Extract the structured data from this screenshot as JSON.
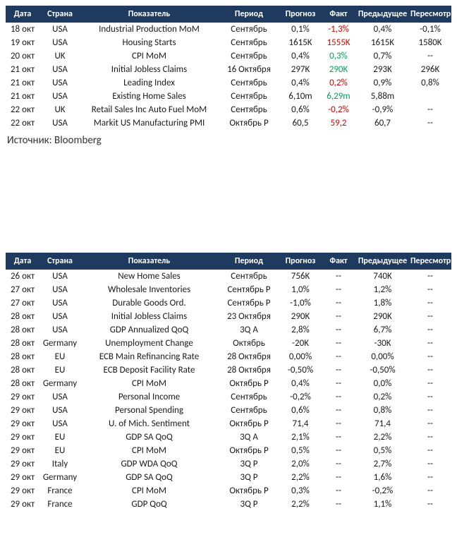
{
  "columns": {
    "date": "Дата",
    "country": "Страна",
    "indicator": "Показатель",
    "period": "Период",
    "forecast": "Прогноз",
    "actual": "Факт",
    "previous": "Предыдущее",
    "revision": "Пересмотр"
  },
  "source_label": "Источник: Bloomberg",
  "colors": {
    "header_bg": "#1f3a5f",
    "header_fg": "#ffffff",
    "text": "#1a1a1a",
    "neg": "#d40000",
    "pos": "#00a651"
  },
  "table1": [
    {
      "date": "18 окт",
      "country": "USA",
      "indicator": "Industrial Production MoM",
      "period": "Сентябрь",
      "forecast": "0,1%",
      "actual": "-1,3%",
      "actual_color": "neg",
      "previous": "0,4%",
      "revision": "-0,1%"
    },
    {
      "date": "19 окт",
      "country": "USA",
      "indicator": "Housing Starts",
      "period": "Сентябрь",
      "forecast": "1615K",
      "actual": "1555K",
      "actual_color": "neg",
      "previous": "1615K",
      "revision": "1580K"
    },
    {
      "date": "20 окт",
      "country": "UK",
      "indicator": "CPI MoM",
      "period": "Сентябрь",
      "forecast": "0,4%",
      "actual": "0,3%",
      "actual_color": "pos",
      "previous": "0,7%",
      "revision": "--"
    },
    {
      "date": "21 окт",
      "country": "USA",
      "indicator": "Initial Jobless Claims",
      "period": "16 Октября",
      "forecast": "297K",
      "actual": "290K",
      "actual_color": "pos",
      "previous": "293K",
      "revision": "296K"
    },
    {
      "date": "21 окт",
      "country": "USA",
      "indicator": "Leading Index",
      "period": "Сентябрь",
      "forecast": "0,4%",
      "actual": "0,2%",
      "actual_color": "neg",
      "previous": "0,9%",
      "revision": "0,8%"
    },
    {
      "date": "21 окт",
      "country": "USA",
      "indicator": "Existing Home Sales",
      "period": "Сентябрь",
      "forecast": "6,10m",
      "actual": "6,29m",
      "actual_color": "pos",
      "previous": "5,88m",
      "revision": ""
    },
    {
      "date": "22 окт",
      "country": "UK",
      "indicator": "Retail Sales Inc Auto Fuel MoM",
      "period": "Сентябрь",
      "forecast": "0,6%",
      "actual": "-0,2%",
      "actual_color": "neg",
      "previous": "-0,9%",
      "revision": "--"
    },
    {
      "date": "22 окт",
      "country": "USA",
      "indicator": "Markit US Manufacturing PMI",
      "period": "Октябрь P",
      "forecast": "60,5",
      "actual": "59,2",
      "actual_color": "neg",
      "previous": "60,7",
      "revision": "--"
    }
  ],
  "table2": [
    {
      "date": "26 окт",
      "country": "USA",
      "indicator": "New Home Sales",
      "period": "Сентябрь",
      "forecast": "756K",
      "actual": "--",
      "previous": "740K",
      "revision": "--"
    },
    {
      "date": "27 окт",
      "country": "USA",
      "indicator": "Wholesale Inventories",
      "period": "Сентябрь P",
      "forecast": "1,0%",
      "actual": "--",
      "previous": "1,2%",
      "revision": "--"
    },
    {
      "date": "27 окт",
      "country": "USA",
      "indicator": "Durable Goods Ord.",
      "period": "Сентябрь P",
      "forecast": "-1,0%",
      "actual": "--",
      "previous": "1,8%",
      "revision": "--"
    },
    {
      "date": "28 окт",
      "country": "USA",
      "indicator": "Initial Jobless Claims",
      "period": "23 Октября",
      "forecast": "290K",
      "actual": "--",
      "previous": "290K",
      "revision": "--"
    },
    {
      "date": "28 окт",
      "country": "USA",
      "indicator": "GDP Annualized QoQ",
      "period": "3Q A",
      "forecast": "2,8%",
      "actual": "--",
      "previous": "6,7%",
      "revision": "--"
    },
    {
      "date": "28 окт",
      "country": "Germany",
      "indicator": "Unemployment Change",
      "period": "Октябрь",
      "forecast": "-20K",
      "actual": "--",
      "previous": "-30K",
      "revision": "--"
    },
    {
      "date": "28 окт",
      "country": "EU",
      "indicator": "ECB Main Refinancing Rate",
      "period": "28 Октября",
      "forecast": "0,00%",
      "actual": "--",
      "previous": "0,00%",
      "revision": "--"
    },
    {
      "date": "28 окт",
      "country": "EU",
      "indicator": "ECB Deposit Facility Rate",
      "period": "28 Октября",
      "forecast": "-0,50%",
      "actual": "--",
      "previous": "-0,50%",
      "revision": "--"
    },
    {
      "date": "28 окт",
      "country": "Germany",
      "indicator": "CPI MoM",
      "period": "Октябрь P",
      "forecast": "0,4%",
      "actual": "--",
      "previous": "0,0%",
      "revision": "--"
    },
    {
      "date": "29 окт",
      "country": "USA",
      "indicator": "Personal Income",
      "period": "Сентябрь",
      "forecast": "-0,2%",
      "actual": "--",
      "previous": "0,2%",
      "revision": "--"
    },
    {
      "date": "29 окт",
      "country": "USA",
      "indicator": "Personal Spending",
      "period": "Сентябрь",
      "forecast": "0,6%",
      "actual": "--",
      "previous": "0,8%",
      "revision": "--"
    },
    {
      "date": "29 окт",
      "country": "USA",
      "indicator": "U. of Mich. Sentiment",
      "period": "Октябрь P",
      "forecast": "71,4",
      "actual": "--",
      "previous": "71,4",
      "revision": "--"
    },
    {
      "date": "29 окт",
      "country": "EU",
      "indicator": "GDP SA QoQ",
      "period": "3Q A",
      "forecast": "2,1%",
      "actual": "--",
      "previous": "2,2%",
      "revision": "--"
    },
    {
      "date": "29 окт",
      "country": "EU",
      "indicator": "CPI MoM",
      "period": "Октябрь P",
      "forecast": "0,5%",
      "actual": "--",
      "previous": "0,5%",
      "revision": "--"
    },
    {
      "date": "29 окт",
      "country": "Italy",
      "indicator": "GDP WDA QoQ",
      "period": "3Q P",
      "forecast": "2,0%",
      "actual": "--",
      "previous": "2,7%",
      "revision": "--"
    },
    {
      "date": "29 окт",
      "country": "Germany",
      "indicator": "GDP SA QoQ",
      "period": "3Q P",
      "forecast": "2,2%",
      "actual": "--",
      "previous": "1,6%",
      "revision": "--"
    },
    {
      "date": "29 окт",
      "country": "France",
      "indicator": "CPI MoM",
      "period": "Октябрь P",
      "forecast": "0,3%",
      "actual": "--",
      "previous": "-0,2%",
      "revision": "--"
    },
    {
      "date": "29 окт",
      "country": "France",
      "indicator": "GDP QoQ",
      "period": "3Q P",
      "forecast": "2,2%",
      "actual": "--",
      "previous": "1,1%",
      "revision": "--"
    }
  ]
}
